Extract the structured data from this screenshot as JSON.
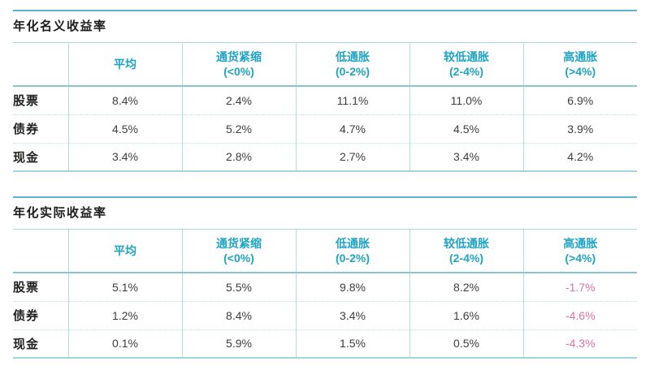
{
  "colors": {
    "accent_teal": "#1FA4C3",
    "rule_teal": "#57B6C7",
    "grid_teal_light": "#B3DBE2",
    "negative_pink": "#E0729F",
    "text_dark": "#3D3D3D"
  },
  "column_headers": [
    {
      "label": "平均",
      "range": ""
    },
    {
      "label": "通货紧缩",
      "range": "(<0%)"
    },
    {
      "label": "低通胀",
      "range": "(0-2%)"
    },
    {
      "label": "较低通胀",
      "range": "(2-4%)"
    },
    {
      "label": "高通胀",
      "range": "(>4%)"
    }
  ],
  "nominal": {
    "title": "年化名义收益率",
    "rows": [
      {
        "label": "股票",
        "values": [
          "8.4%",
          "2.4%",
          "11.1%",
          "11.0%",
          "6.9%"
        ]
      },
      {
        "label": "债券",
        "values": [
          "4.5%",
          "5.2%",
          "4.7%",
          "4.5%",
          "3.9%"
        ]
      },
      {
        "label": "现金",
        "values": [
          "3.4%",
          "2.8%",
          "2.7%",
          "3.4%",
          "4.2%"
        ]
      }
    ]
  },
  "real": {
    "title": "年化实际收益率",
    "rows": [
      {
        "label": "股票",
        "values": [
          "5.1%",
          "5.5%",
          "9.8%",
          "8.2%",
          "-1.7%"
        ]
      },
      {
        "label": "债券",
        "values": [
          "1.2%",
          "8.4%",
          "3.4%",
          "1.6%",
          "-4.6%"
        ]
      },
      {
        "label": "现金",
        "values": [
          "0.1%",
          "5.9%",
          "1.5%",
          "0.5%",
          "-4.3%"
        ]
      }
    ]
  }
}
